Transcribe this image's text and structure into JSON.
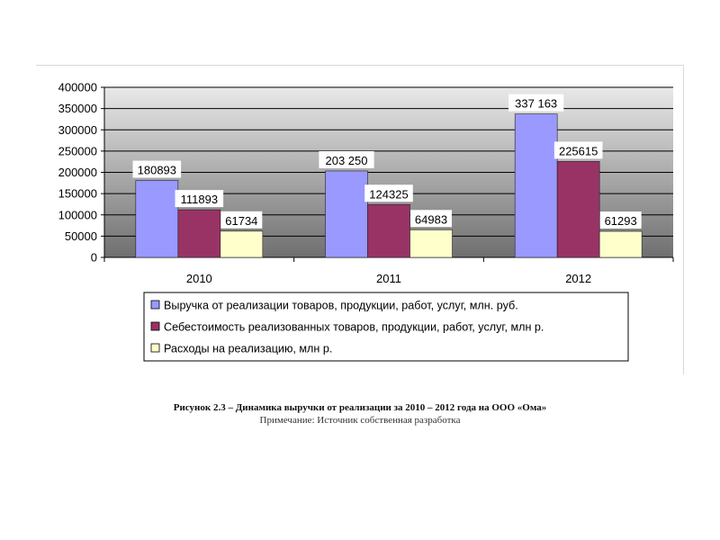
{
  "chart_data": {
    "type": "bar",
    "categories": [
      "2010",
      "2011",
      "2012"
    ],
    "series": [
      {
        "name": "Выручка от реализации товаров, продукции, работ, услуг, млн. руб.",
        "values": [
          180893,
          203250,
          337163
        ],
        "labels": [
          "180893",
          "203 250",
          "337 163"
        ],
        "color": "#9999ff"
      },
      {
        "name": "Себестоимость реализованных товаров, продукции, работ, услуг, млн р.",
        "values": [
          111893,
          124325,
          225615
        ],
        "labels": [
          "111893",
          "124325",
          "225615"
        ],
        "color": "#993366"
      },
      {
        "name": "Расходы на реализацию, млн р.",
        "values": [
          61734,
          64983,
          61293
        ],
        "labels": [
          "61734",
          "64983",
          "61293"
        ],
        "color": "#ffffcc"
      }
    ],
    "ylim": [
      0,
      400000
    ],
    "yticks": [
      0,
      50000,
      100000,
      150000,
      200000,
      250000,
      300000,
      350000,
      400000
    ],
    "grid": true,
    "legend": "bottom",
    "title": "",
    "xlabel": "",
    "ylabel": ""
  },
  "caption": {
    "title": "Рисунок 2.3 – Динамика выручки от реализации за 2010 – 2012 года на ООО «Ома»",
    "note": "Примечание: Источник собственная разработка"
  }
}
